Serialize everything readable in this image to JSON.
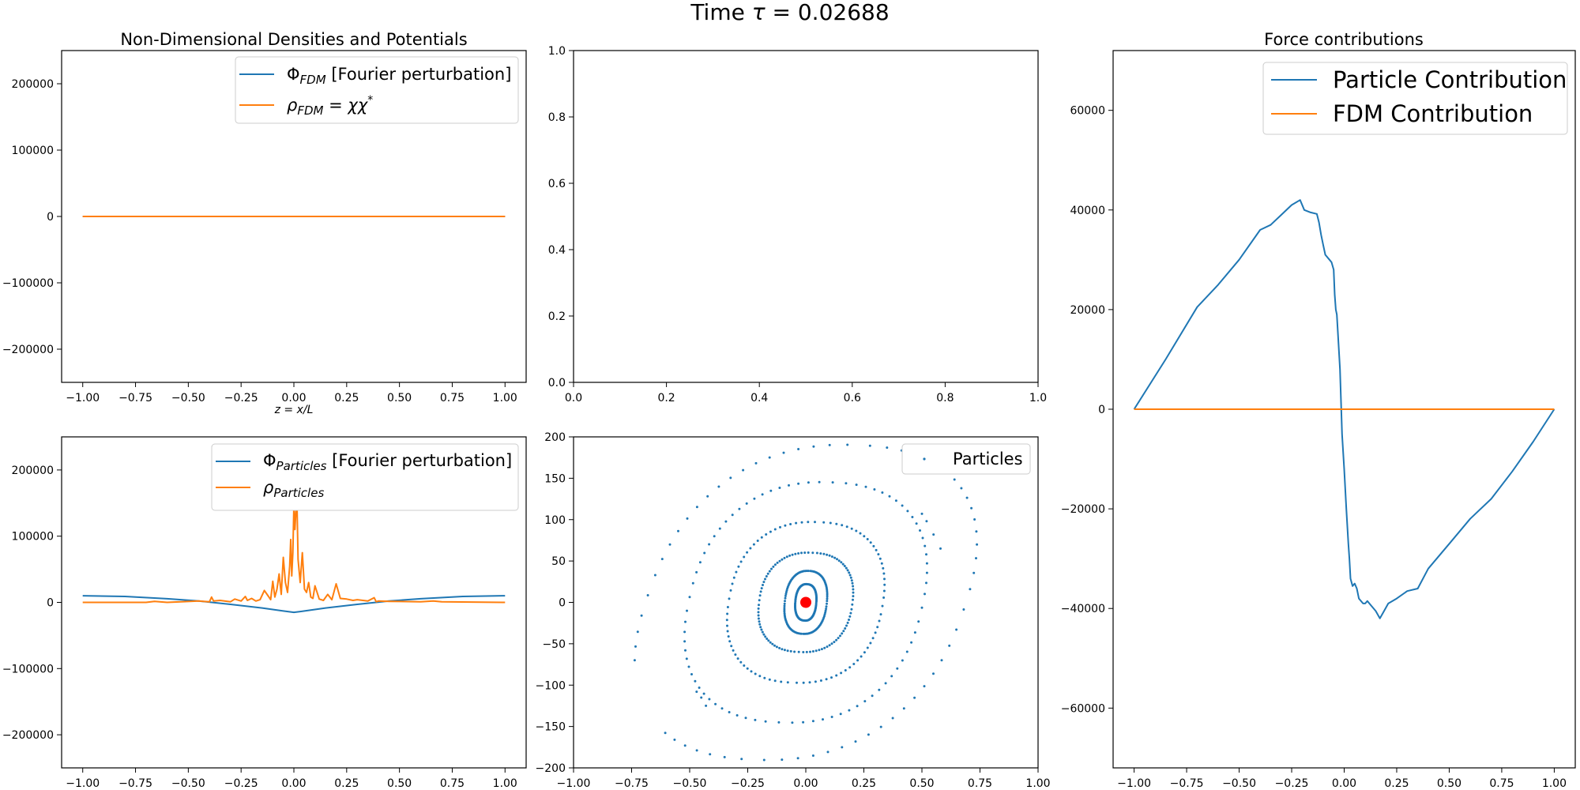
{
  "figure": {
    "suptitle_prefix": "Time ",
    "suptitle_symbol": "τ",
    "suptitle_value": " = 0.02688"
  },
  "colors": {
    "blue": "#1f77b4",
    "orange": "#ff7f0e",
    "red": "#ff0000",
    "axis": "#000000"
  },
  "chart_data": [
    {
      "id": "fdm",
      "type": "line",
      "title": "Non-Dimensional Densities and Potentials",
      "xlabel": "z = x/L",
      "ylabel": "",
      "xlim": [
        -1.1,
        1.1
      ],
      "ylim": [
        -250000,
        250000
      ],
      "xticks": [
        -1.0,
        -0.75,
        -0.5,
        -0.25,
        0.0,
        0.25,
        0.5,
        0.75,
        1.0
      ],
      "xtick_labels": [
        "−1.00",
        "−0.75",
        "−0.50",
        "−0.25",
        "0.00",
        "0.25",
        "0.50",
        "0.75",
        "1.00"
      ],
      "yticks": [
        -200000,
        -100000,
        0,
        100000,
        200000
      ],
      "ytick_labels": [
        "−200000",
        "−100000",
        "0",
        "100000",
        "200000"
      ],
      "legend": "top-right",
      "series": [
        {
          "name": "Φ_FDM [Fourier perturbation]",
          "color": "#1f77b4",
          "x": [
            -1.0,
            1.0
          ],
          "y": [
            0,
            0
          ]
        },
        {
          "name": "ρ_FDM = χχ*",
          "color": "#ff7f0e",
          "x": [
            -1.0,
            1.0
          ],
          "y": [
            0,
            0
          ]
        }
      ]
    },
    {
      "id": "empty",
      "type": "line",
      "title": "",
      "xlim": [
        0,
        1
      ],
      "ylim": [
        0,
        1
      ],
      "xticks": [
        0.0,
        0.2,
        0.4,
        0.6,
        0.8,
        1.0
      ],
      "xtick_labels": [
        "0.0",
        "0.2",
        "0.4",
        "0.6",
        "0.8",
        "1.0"
      ],
      "yticks": [
        0.0,
        0.2,
        0.4,
        0.6,
        0.8,
        1.0
      ],
      "ytick_labels": [
        "0.0",
        "0.2",
        "0.4",
        "0.6",
        "0.8",
        "1.0"
      ],
      "series": []
    },
    {
      "id": "force",
      "type": "line",
      "title": "Force contributions",
      "xlim": [
        -1.1,
        1.1
      ],
      "ylim": [
        -72000,
        72000
      ],
      "xticks": [
        -1.0,
        -0.75,
        -0.5,
        -0.25,
        0.0,
        0.25,
        0.5,
        0.75,
        1.0
      ],
      "xtick_labels": [
        "−1.00",
        "−0.75",
        "−0.50",
        "−0.25",
        "0.00",
        "0.25",
        "0.50",
        "0.75",
        "1.00"
      ],
      "yticks": [
        -60000,
        -40000,
        -20000,
        0,
        20000,
        40000,
        60000
      ],
      "ytick_labels": [
        "−60000",
        "−40000",
        "−20000",
        "0",
        "20000",
        "40000",
        "60000"
      ],
      "legend": "top-right",
      "series": [
        {
          "name": "Particle Contribution",
          "color": "#1f77b4",
          "x": [
            -1.0,
            -0.85,
            -0.7,
            -0.6,
            -0.5,
            -0.4,
            -0.35,
            -0.3,
            -0.25,
            -0.21,
            -0.19,
            -0.16,
            -0.13,
            -0.12,
            -0.11,
            -0.1,
            -0.09,
            -0.07,
            -0.06,
            -0.05,
            -0.045,
            -0.04,
            -0.035,
            -0.02,
            -0.01,
            0.0,
            0.01,
            0.02,
            0.025,
            0.03,
            0.04,
            0.05,
            0.06,
            0.07,
            0.09,
            0.1,
            0.11,
            0.13,
            0.15,
            0.17,
            0.19,
            0.21,
            0.25,
            0.3,
            0.35,
            0.4,
            0.5,
            0.6,
            0.7,
            0.8,
            0.9,
            1.0
          ],
          "y": [
            0,
            10000,
            20500,
            25000,
            30000,
            36000,
            37000,
            39000,
            41000,
            42000,
            40000,
            39500,
            39200,
            37500,
            35000,
            33000,
            31000,
            30000,
            29500,
            28000,
            23000,
            20000,
            19000,
            8000,
            -5000,
            -12000,
            -20000,
            -27000,
            -30000,
            -34000,
            -35500,
            -35000,
            -36000,
            -38000,
            -39000,
            -39000,
            -38500,
            -39500,
            -40500,
            -42000,
            -40500,
            -39000,
            -38000,
            -36500,
            -36000,
            -32000,
            -27000,
            -22000,
            -18000,
            -12500,
            -6500,
            0
          ]
        },
        {
          "name": "FDM Contribution",
          "color": "#ff7f0e",
          "x": [
            -1.0,
            1.0
          ],
          "y": [
            0,
            0
          ]
        }
      ]
    },
    {
      "id": "particles",
      "type": "line",
      "title": "",
      "xlim": [
        -1.1,
        1.1
      ],
      "ylim": [
        -250000,
        250000
      ],
      "xticks": [
        -1.0,
        -0.75,
        -0.5,
        -0.25,
        0.0,
        0.25,
        0.5,
        0.75,
        1.0
      ],
      "xtick_labels": [
        "−1.00",
        "−0.75",
        "−0.50",
        "−0.25",
        "0.00",
        "0.25",
        "0.50",
        "0.75",
        "1.00"
      ],
      "yticks": [
        -200000,
        -100000,
        0,
        100000,
        200000
      ],
      "ytick_labels": [
        "−200000",
        "−100000",
        "0",
        "100000",
        "200000"
      ],
      "legend": "top-right",
      "series": [
        {
          "name": "Φ_Particles [Fourier perturbation]",
          "color": "#1f77b4",
          "x": [
            -1.0,
            -0.8,
            -0.6,
            -0.45,
            -0.3,
            -0.15,
            -0.05,
            0.0,
            0.05,
            0.15,
            0.3,
            0.45,
            0.6,
            0.8,
            1.0
          ],
          "y": [
            10000,
            9000,
            5500,
            2000,
            -3000,
            -8500,
            -13000,
            -15000,
            -13000,
            -8500,
            -3000,
            2000,
            5500,
            9000,
            10000
          ]
        },
        {
          "name": "ρ_Particles",
          "color": "#ff7f0e",
          "x": [
            -1.0,
            -0.7,
            -0.66,
            -0.6,
            -0.45,
            -0.4,
            -0.39,
            -0.38,
            -0.35,
            -0.3,
            -0.28,
            -0.25,
            -0.23,
            -0.22,
            -0.2,
            -0.18,
            -0.16,
            -0.14,
            -0.12,
            -0.11,
            -0.1,
            -0.09,
            -0.08,
            -0.07,
            -0.06,
            -0.05,
            -0.04,
            -0.03,
            -0.02,
            -0.015,
            -0.01,
            -0.005,
            0.0,
            0.005,
            0.01,
            0.015,
            0.02,
            0.03,
            0.04,
            0.05,
            0.06,
            0.07,
            0.08,
            0.09,
            0.1,
            0.12,
            0.14,
            0.16,
            0.18,
            0.2,
            0.22,
            0.25,
            0.28,
            0.3,
            0.35,
            0.38,
            0.39,
            0.4,
            0.45,
            0.6,
            0.66,
            0.7,
            1.0
          ],
          "y": [
            0,
            0,
            1500,
            0,
            2000,
            1000,
            8000,
            2000,
            3000,
            1000,
            5000,
            2000,
            9000,
            3000,
            6000,
            2000,
            4000,
            18000,
            9000,
            4000,
            32000,
            8000,
            20000,
            43000,
            12000,
            68000,
            30000,
            15000,
            55000,
            95000,
            40000,
            75000,
            145000,
            110000,
            140000,
            145000,
            65000,
            30000,
            75000,
            20000,
            15000,
            30000,
            8000,
            6000,
            25000,
            5000,
            3000,
            12000,
            4000,
            28000,
            6000,
            5000,
            3000,
            4000,
            2000,
            7000,
            1000,
            2000,
            1500,
            1000,
            2000,
            1000,
            0
          ]
        }
      ]
    },
    {
      "id": "phase",
      "type": "scatter",
      "title": "",
      "xlim": [
        -1.0,
        1.0
      ],
      "ylim": [
        -200,
        200
      ],
      "xticks": [
        -1.0,
        -0.75,
        -0.5,
        -0.25,
        0.0,
        0.25,
        0.5,
        0.75,
        1.0
      ],
      "xtick_labels": [
        "−1.00",
        "−0.75",
        "−0.50",
        "−0.25",
        "0.00",
        "0.25",
        "0.50",
        "0.75",
        "1.00"
      ],
      "yticks": [
        -200,
        -150,
        -100,
        -50,
        0,
        50,
        100,
        150,
        200
      ],
      "ytick_labels": [
        "−200",
        "−150",
        "−100",
        "−50",
        "0",
        "50",
        "100",
        "150",
        "200"
      ],
      "legend": "top-right",
      "series": [
        {
          "name": "Particles",
          "color": "#1f77b4",
          "orbits": [
            {
              "a": 0.68,
              "b": 190,
              "tilt": 0.12,
              "gap": [
                3.55,
                4.05
              ]
            },
            {
              "a": 0.5,
              "b": 145,
              "tilt": 0.08,
              "gap": []
            },
            {
              "a": 0.33,
              "b": 97,
              "tilt": 0.06,
              "gap": []
            },
            {
              "a": 0.2,
              "b": 60,
              "tilt": 0.05,
              "gap": []
            },
            {
              "a": 0.09,
              "b": 38,
              "tilt": 0.04,
              "gap": []
            },
            {
              "a": 0.045,
              "b": 22,
              "tilt": 0.03,
              "gap": []
            }
          ],
          "marker_center": {
            "x": 0.0,
            "y": 0,
            "color": "#ff0000"
          }
        }
      ]
    }
  ]
}
